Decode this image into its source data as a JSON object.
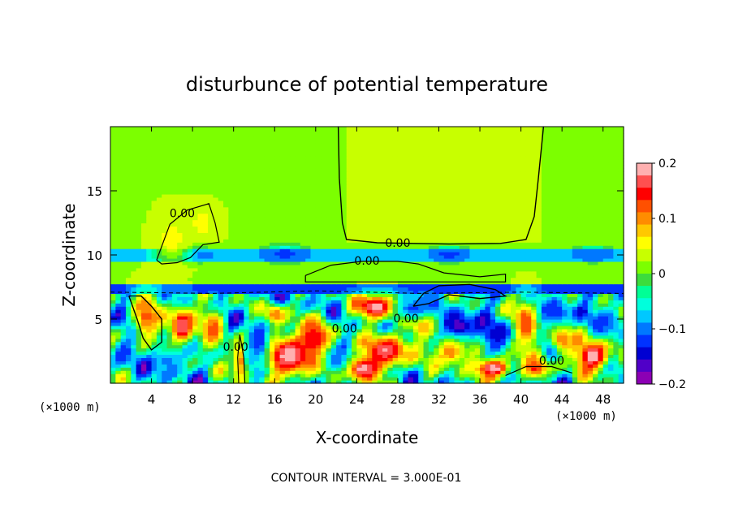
{
  "chart_data": {
    "type": "heatmap",
    "title": "disturbunce of potential temperature",
    "xlabel": "X-coordinate",
    "ylabel": "Z-coordinate",
    "x_unit": "(×1000 m)",
    "x_unit_right": "(×1000 m)",
    "x_ticks": [
      "4",
      "8",
      "12",
      "16",
      "20",
      "24",
      "28",
      "32",
      "36",
      "40",
      "44",
      "48"
    ],
    "x_tick_values": [
      4,
      8,
      12,
      16,
      20,
      24,
      28,
      32,
      36,
      40,
      44,
      48
    ],
    "y_ticks": [
      "5",
      "10",
      "15"
    ],
    "y_tick_values": [
      5,
      10,
      15
    ],
    "xlim": [
      0,
      50
    ],
    "ylim": [
      0,
      20
    ],
    "colorbar": {
      "ticks": [
        "0.2",
        "0.1",
        "0",
        "−0.1",
        "−0.2"
      ],
      "tick_values": [
        0.2,
        0.1,
        0,
        -0.1,
        -0.2
      ],
      "range": [
        -0.2,
        0.2
      ],
      "colors": [
        "#ffb0b0",
        "#ff5050",
        "#ff0000",
        "#ff5000",
        "#ff8c00",
        "#ffc800",
        "#ffff00",
        "#c8ff00",
        "#7cff00",
        "#3cdc3c",
        "#00ff96",
        "#00ffdc",
        "#00c8ff",
        "#0078ff",
        "#0032ff",
        "#0000d2",
        "#5000c8",
        "#8c00b4"
      ]
    },
    "contour_labels": [
      {
        "text": "0.00",
        "x": 7.0,
        "z": 13.2
      },
      {
        "text": "0.00",
        "x": 28.0,
        "z": 10.9
      },
      {
        "text": "0.00",
        "x": 25.0,
        "z": 9.5
      },
      {
        "text": "0.00",
        "x": 22.8,
        "z": 4.2
      },
      {
        "text": "0.00",
        "x": 28.8,
        "z": 5.0
      },
      {
        "text": "0.00",
        "x": 12.2,
        "z": 2.8
      },
      {
        "text": "0.00",
        "x": 43.0,
        "z": 1.7
      }
    ],
    "fields": {
      "upper": {
        "value": 0.02
      },
      "plume": {
        "x_start": 22.8,
        "x_end": 42.0,
        "z_bottom": 10.9,
        "value": 0.04
      },
      "band": {
        "z_bottom": 9.6,
        "z_top": 10.6,
        "value": -0.08
      },
      "lower_layer": {
        "z_top": 7.7
      },
      "anomalies": [
        {
          "x": 3.5,
          "z": 5.2,
          "rx": 1.5,
          "rz": 2.2,
          "value": 0.12
        },
        {
          "x": 7.0,
          "z": 4.5,
          "rx": 1.5,
          "rz": 1.8,
          "value": 0.18
        },
        {
          "x": 10.0,
          "z": 4.3,
          "rx": 1.2,
          "rz": 1.8,
          "value": 0.12
        },
        {
          "x": 12.6,
          "z": 1.8,
          "rx": 0.8,
          "rz": 2.0,
          "value": 0.11
        },
        {
          "x": 17.5,
          "z": 2.2,
          "rx": 3.0,
          "rz": 2.0,
          "value": 0.2
        },
        {
          "x": 16.0,
          "z": 5.4,
          "rx": 1.3,
          "rz": 0.9,
          "value": 0.12
        },
        {
          "x": 20.0,
          "z": 3.4,
          "rx": 1.8,
          "rz": 1.8,
          "value": 0.16
        },
        {
          "x": 24.5,
          "z": 1.2,
          "rx": 2.2,
          "rz": 1.1,
          "value": 0.2
        },
        {
          "x": 27.0,
          "z": 2.6,
          "rx": 2.5,
          "rz": 1.5,
          "value": 0.18
        },
        {
          "x": 26.0,
          "z": 6.0,
          "rx": 2.4,
          "rz": 1.1,
          "value": 0.2
        },
        {
          "x": 30.5,
          "z": 4.8,
          "rx": 1.5,
          "rz": 1.2,
          "value": 0.12
        },
        {
          "x": 33.2,
          "z": 2.6,
          "rx": 2.0,
          "rz": 1.5,
          "value": 0.12
        },
        {
          "x": 37.3,
          "z": 1.2,
          "rx": 2.0,
          "rz": 0.9,
          "value": 0.2
        },
        {
          "x": 40.5,
          "z": 4.6,
          "rx": 1.5,
          "rz": 2.3,
          "value": 0.14
        },
        {
          "x": 44.0,
          "z": 3.6,
          "rx": 1.3,
          "rz": 1.4,
          "value": 0.12
        },
        {
          "x": 47.0,
          "z": 2.2,
          "rx": 2.0,
          "rz": 1.5,
          "value": 0.2
        },
        {
          "x": 41.5,
          "z": 1.2,
          "rx": 1.5,
          "rz": 0.9,
          "value": 0.14
        },
        {
          "x": 1.2,
          "z": 2.5,
          "rx": 1.0,
          "rz": 1.2,
          "value": -0.12
        },
        {
          "x": 5.5,
          "z": 1.8,
          "rx": 1.8,
          "rz": 1.2,
          "value": -0.1
        },
        {
          "x": 14.5,
          "z": 3.2,
          "rx": 1.2,
          "rz": 2.0,
          "value": -0.13
        },
        {
          "x": 22.0,
          "z": 1.8,
          "rx": 1.5,
          "rz": 1.2,
          "value": -0.1
        },
        {
          "x": 29.5,
          "z": 5.8,
          "rx": 2.0,
          "rz": 1.0,
          "value": -0.12
        },
        {
          "x": 34.0,
          "z": 4.5,
          "rx": 2.0,
          "rz": 1.2,
          "value": -0.17
        },
        {
          "x": 37.5,
          "z": 3.8,
          "rx": 1.8,
          "rz": 1.2,
          "value": -0.14
        },
        {
          "x": 43.5,
          "z": 5.5,
          "rx": 1.8,
          "rz": 1.3,
          "value": -0.12
        },
        {
          "x": 48.5,
          "z": 4.8,
          "rx": 1.5,
          "rz": 1.3,
          "value": -0.11
        },
        {
          "x": 31.0,
          "z": 6.6,
          "rx": 1.5,
          "rz": 0.7,
          "value": -0.1
        },
        {
          "x": 8.5,
          "z": 10.1,
          "rx": 1.6,
          "rz": 0.6,
          "value": -0.12
        },
        {
          "x": 17.0,
          "z": 10.1,
          "rx": 2.2,
          "rz": 0.7,
          "value": -0.12
        },
        {
          "x": 33.0,
          "z": 10.1,
          "rx": 2.0,
          "rz": 0.6,
          "value": -0.12
        },
        {
          "x": 47.0,
          "z": 10.1,
          "rx": 2.0,
          "rz": 0.6,
          "value": -0.11
        },
        {
          "x": 6.0,
          "z": 11.2,
          "rx": 2.0,
          "rz": 2.5,
          "value": 0.05
        },
        {
          "x": 9.0,
          "z": 12.5,
          "rx": 1.8,
          "rz": 1.6,
          "value": 0.05
        }
      ]
    }
  },
  "footer": {
    "contour_interval": "CONTOUR INTERVAL = 3.000E-01"
  }
}
